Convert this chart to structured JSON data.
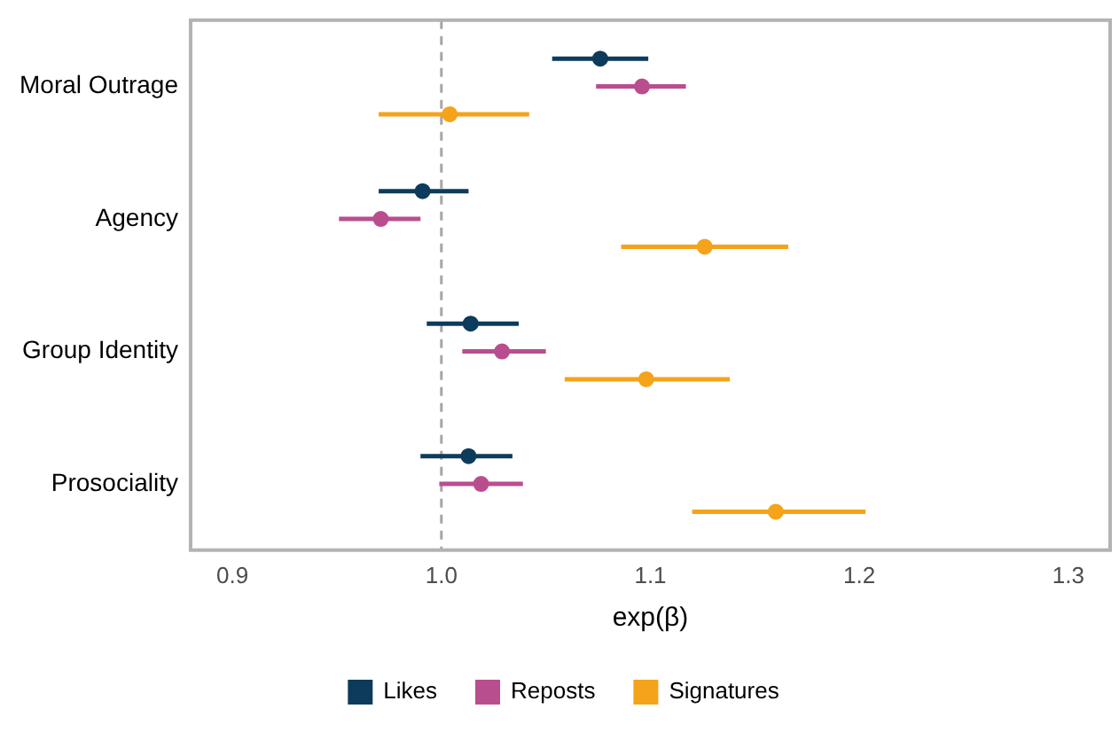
{
  "chart_data": {
    "type": "scatter",
    "orientation": "horizontal",
    "xlabel": "exp(β)",
    "categories": [
      "Moral Outrage",
      "Agency",
      "Group Identity",
      "Prosociality"
    ],
    "xlim": [
      0.88,
      1.32
    ],
    "xticks": [
      {
        "value": 0.9,
        "label": "0.9"
      },
      {
        "value": 1.0,
        "label": "1.0"
      },
      {
        "value": 1.1,
        "label": "1.1"
      },
      {
        "value": 1.2,
        "label": "1.2"
      },
      {
        "value": 1.3,
        "label": "1.3"
      }
    ],
    "grid": false,
    "legend": "bottom",
    "marker": "circle",
    "ref_lines": [
      {
        "axis": "x",
        "value": 1.0,
        "color": "#a6a6a6",
        "line_style": "dashed"
      }
    ],
    "series": [
      {
        "name": "Likes",
        "color": "#0d3b5c",
        "values": [
          1.076,
          0.991,
          1.014,
          1.013
        ],
        "errors": [
          [
            1.053,
            1.099
          ],
          [
            0.97,
            1.013
          ],
          [
            0.993,
            1.037
          ],
          [
            0.99,
            1.034
          ]
        ]
      },
      {
        "name": "Reposts",
        "color": "#b94e8f",
        "values": [
          1.096,
          0.971,
          1.029,
          1.019
        ],
        "errors": [
          [
            1.074,
            1.117
          ],
          [
            0.951,
            0.99
          ],
          [
            1.01,
            1.05
          ],
          [
            0.999,
            1.039
          ]
        ]
      },
      {
        "name": "Signatures",
        "color": "#f5a31a",
        "values": [
          1.004,
          1.126,
          1.098,
          1.16
        ],
        "errors": [
          [
            0.97,
            1.042
          ],
          [
            1.086,
            1.166
          ],
          [
            1.059,
            1.138
          ],
          [
            1.12,
            1.203
          ]
        ]
      }
    ]
  }
}
